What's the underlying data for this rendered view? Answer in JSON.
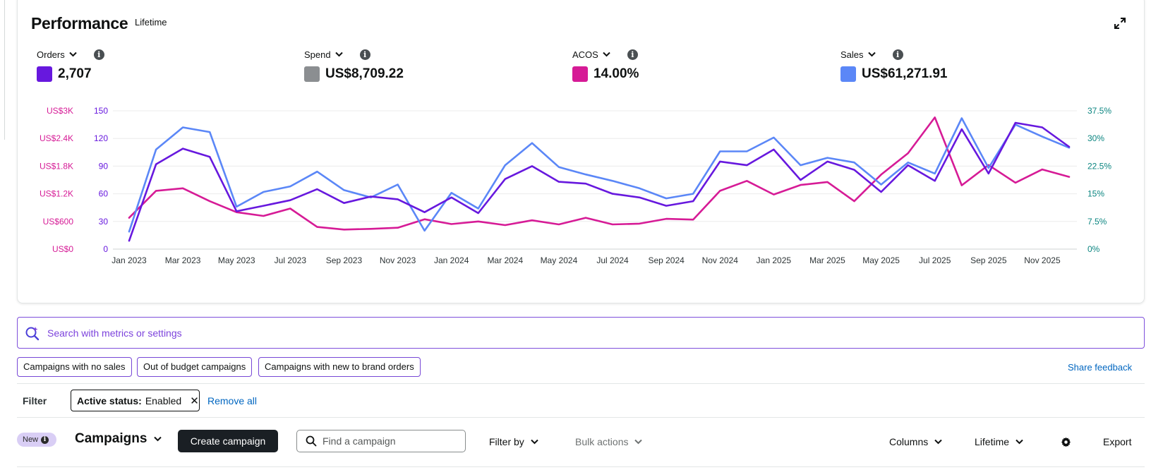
{
  "performance": {
    "title": "Performance",
    "range": "Lifetime",
    "metrics": [
      {
        "label": "Orders",
        "value": "2,707",
        "color": "#6718de"
      },
      {
        "label": "Spend",
        "value": "US$8,709.22",
        "color": "#8b8e91"
      },
      {
        "label": "ACOS",
        "value": "14.00%",
        "color": "#d61b96"
      },
      {
        "label": "Sales",
        "value": "US$61,271.91",
        "color": "#5b87f7"
      }
    ]
  },
  "chart_data": {
    "type": "line",
    "x": [
      "Jan 2023",
      "Feb 2023",
      "Mar 2023",
      "Apr 2023",
      "May 2023",
      "Jun 2023",
      "Jul 2023",
      "Aug 2023",
      "Sep 2023",
      "Oct 2023",
      "Nov 2023",
      "Dec 2023",
      "Jan 2024",
      "Feb 2024",
      "Mar 2024",
      "Apr 2024",
      "May 2024",
      "Jun 2024",
      "Jul 2024",
      "Aug 2024",
      "Sep 2024",
      "Oct 2024",
      "Nov 2024",
      "Dec 2024",
      "Jan 2025",
      "Feb 2025",
      "Mar 2025",
      "Apr 2025",
      "May 2025",
      "Jun 2025",
      "Jul 2025",
      "Aug 2025",
      "Sep 2025",
      "Oct 2025",
      "Nov 2025",
      "Dec 2025"
    ],
    "x_tick_labels": [
      "Jan 2023",
      "Mar 2023",
      "May 2023",
      "Jul 2023",
      "Sep 2023",
      "Nov 2023",
      "Jan 2024",
      "Mar 2024",
      "May 2024",
      "Jul 2024",
      "Sep 2024",
      "Nov 2024",
      "Jan 2025",
      "Mar 2025",
      "May 2025",
      "Jul 2025",
      "Sep 2025",
      "Nov 2025"
    ],
    "y_axes": {
      "spend": {
        "ticks": [
          "US$0",
          "US$600",
          "US$1.2K",
          "US$1.8K",
          "US$2.4K",
          "US$3K"
        ],
        "range": [
          0,
          3000
        ],
        "color": "#d61b96"
      },
      "orders": {
        "ticks": [
          "0",
          "30",
          "60",
          "90",
          "120",
          "150"
        ],
        "range": [
          0,
          150
        ],
        "color": "#6718de"
      },
      "acos": {
        "ticks": [
          "0%",
          "7.5%",
          "15%",
          "22.5%",
          "30%",
          "37.5%"
        ],
        "range": [
          0,
          37.5
        ],
        "color": "#0b8580"
      }
    },
    "grid": true,
    "series": [
      {
        "name": "Orders",
        "axis": "orders",
        "color": "#6718de",
        "values": [
          9,
          92,
          109,
          100,
          41,
          47,
          53,
          65,
          50,
          57,
          54,
          40,
          56,
          39,
          76,
          90,
          73,
          71,
          60,
          56,
          47,
          52,
          95,
          91,
          108,
          75,
          95,
          86,
          62,
          91,
          74,
          130,
          82,
          137,
          132,
          111
        ]
      },
      {
        "name": "Sales",
        "axis": "orders",
        "color": "#5b87f7",
        "values": [
          19,
          108,
          132,
          127,
          46,
          62,
          68,
          84,
          64,
          56,
          70,
          20,
          61,
          44,
          91,
          115,
          89,
          81,
          74,
          66,
          55,
          60,
          106,
          106,
          121,
          91,
          99,
          94,
          70,
          94,
          82,
          142,
          88,
          135,
          122,
          110
        ]
      },
      {
        "name": "ACOS",
        "axis": "acos",
        "color": "#d61b96",
        "values": [
          8.5,
          15.8,
          16.5,
          13,
          10,
          9,
          11,
          6,
          5.3,
          5.5,
          5.8,
          8.1,
          6.8,
          7.5,
          6.5,
          7.8,
          6.7,
          8.5,
          6.7,
          6.9,
          8.2,
          8,
          15.8,
          18.5,
          14.8,
          17.4,
          18.2,
          13,
          20.2,
          26,
          35.7,
          17.3,
          22.8,
          18,
          21.6,
          19.6
        ]
      }
    ]
  },
  "search": {
    "placeholder": "Search with metrics or settings"
  },
  "quick_filters": [
    "Campaigns with no sales",
    "Out of budget campaigns",
    "Campaigns with new to brand orders"
  ],
  "share_feedback": "Share feedback",
  "filter": {
    "label": "Filter",
    "chip_key": "Active status:",
    "chip_value": "Enabled",
    "remove_all": "Remove all"
  },
  "toolbar": {
    "badge": "New",
    "title": "Campaigns",
    "create": "Create campaign",
    "find_placeholder": "Find a campaign",
    "filter_by": "Filter by",
    "bulk_actions": "Bulk actions",
    "columns": "Columns",
    "range": "Lifetime",
    "export": "Export"
  }
}
